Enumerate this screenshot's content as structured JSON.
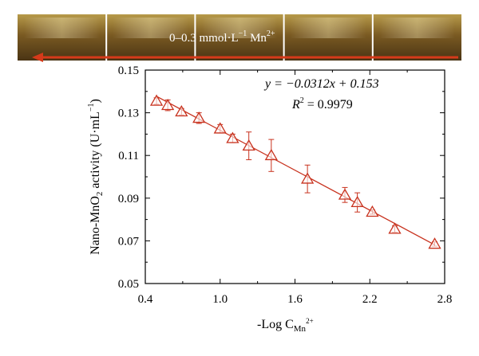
{
  "photo_strip": {
    "label_prefix": "0–0.3 mmol·L",
    "label_exponent": "−1",
    "label_suffix": " Mn",
    "label_ion_charge": "2+",
    "arrow_color": "#d63a1a",
    "panel_count": 5
  },
  "chart_data": {
    "type": "scatter",
    "xlabel_prefix": "-Log C",
    "xlabel_sub": "Mn",
    "xlabel_sup": "2+",
    "ylabel_parts": [
      "Nano-MnO",
      "2",
      " activity (U·mL",
      "−1",
      ")"
    ],
    "xlim": [
      0.4,
      2.8
    ],
    "ylim": [
      0.05,
      0.15
    ],
    "x_ticks": [
      0.4,
      1.0,
      1.6,
      2.2,
      2.8
    ],
    "x_tick_labels": [
      "0.4",
      "1.0",
      "1.6",
      "2.2",
      "2.8"
    ],
    "x_minor_ticks": [
      0.7,
      1.3,
      1.9,
      2.5
    ],
    "y_ticks": [
      0.05,
      0.07,
      0.09,
      0.11,
      0.13,
      0.15
    ],
    "y_tick_labels": [
      "0.05",
      "0.07",
      "0.09",
      "0.11",
      "0.13",
      "0.15"
    ],
    "y_minor_ticks": [
      0.06,
      0.08,
      0.1,
      0.12,
      0.14
    ],
    "equation_line1": "y = −0.0312x + 0.153",
    "equation_r2_prefix": "R",
    "equation_r2_exp": "2",
    "equation_r2_value": " = 0.9979",
    "fit": {
      "slope": -0.0312,
      "intercept": 0.153
    },
    "marker": "open-triangle",
    "color": "#c8321e",
    "points": [
      {
        "x": 0.49,
        "y": 0.1355,
        "err": 0.0015
      },
      {
        "x": 0.58,
        "y": 0.1335,
        "err": 0.0025
      },
      {
        "x": 0.69,
        "y": 0.1305,
        "err": 0.0015
      },
      {
        "x": 0.83,
        "y": 0.1275,
        "err": 0.0025
      },
      {
        "x": 1.0,
        "y": 0.1225,
        "err": 0.002
      },
      {
        "x": 1.1,
        "y": 0.118,
        "err": 0.002
      },
      {
        "x": 1.23,
        "y": 0.1145,
        "err": 0.0065
      },
      {
        "x": 1.41,
        "y": 0.11,
        "err": 0.0075
      },
      {
        "x": 1.7,
        "y": 0.099,
        "err": 0.0065
      },
      {
        "x": 2.0,
        "y": 0.0915,
        "err": 0.0035
      },
      {
        "x": 2.1,
        "y": 0.088,
        "err": 0.0045
      },
      {
        "x": 2.22,
        "y": 0.0835,
        "err": 0.001
      },
      {
        "x": 2.4,
        "y": 0.0755,
        "err": 0.0015
      },
      {
        "x": 2.72,
        "y": 0.0685,
        "err": 0.001
      }
    ]
  }
}
